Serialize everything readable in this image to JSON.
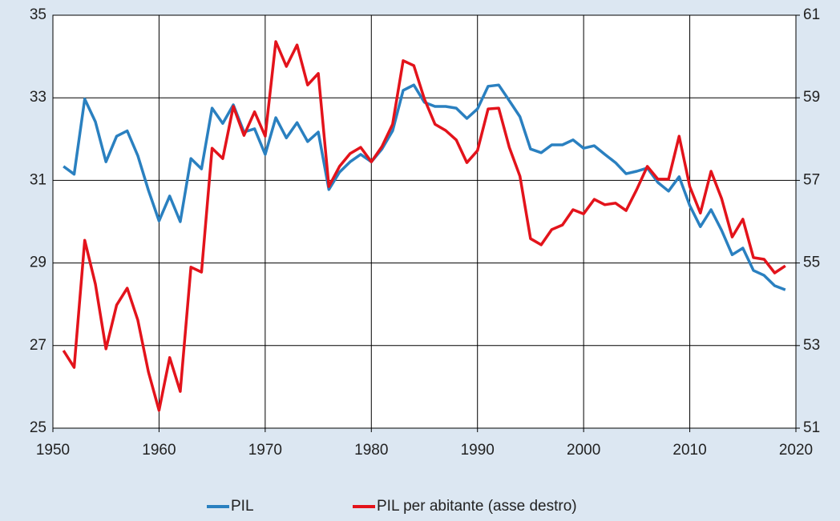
{
  "chart_data": {
    "type": "line",
    "x": [
      1951,
      1952,
      1953,
      1954,
      1955,
      1956,
      1957,
      1958,
      1959,
      1960,
      1961,
      1962,
      1963,
      1964,
      1965,
      1966,
      1967,
      1968,
      1969,
      1970,
      1971,
      1972,
      1973,
      1974,
      1975,
      1976,
      1977,
      1978,
      1979,
      1980,
      1981,
      1982,
      1983,
      1984,
      1985,
      1986,
      1987,
      1988,
      1989,
      1990,
      1991,
      1992,
      1993,
      1994,
      1995,
      1996,
      1997,
      1998,
      1999,
      2000,
      2001,
      2002,
      2003,
      2004,
      2005,
      2006,
      2007,
      2008,
      2009,
      2010,
      2011,
      2012,
      2013,
      2014,
      2015,
      2016,
      2017,
      2018,
      2019
    ],
    "series": [
      {
        "name": "PIL",
        "color": "#2a80c0",
        "axis": "y",
        "values": [
          31.34,
          31.15,
          32.97,
          32.42,
          31.45,
          32.07,
          32.2,
          31.6,
          30.76,
          30.02,
          30.62,
          30.0,
          31.53,
          31.28,
          32.75,
          32.38,
          32.83,
          32.17,
          32.25,
          31.63,
          32.52,
          32.03,
          32.4,
          31.94,
          32.17,
          30.78,
          31.2,
          31.45,
          31.63,
          31.45,
          31.76,
          32.2,
          33.18,
          33.31,
          32.89,
          32.79,
          32.79,
          32.75,
          32.5,
          32.73,
          33.28,
          33.31,
          32.93,
          32.54,
          31.76,
          31.67,
          31.86,
          31.86,
          31.98,
          31.78,
          31.84,
          31.63,
          31.43,
          31.16,
          31.22,
          31.3,
          30.95,
          30.74,
          31.09,
          30.39,
          29.88,
          30.29,
          29.79,
          29.2,
          29.36,
          28.82,
          28.7,
          28.45,
          28.35
        ]
      },
      {
        "name": "PIL per abitante (asse destro)",
        "color": "#e3131b",
        "axis": "y2",
        "values": [
          52.88,
          52.47,
          55.55,
          54.49,
          52.92,
          53.98,
          54.39,
          53.62,
          52.36,
          51.43,
          52.71,
          51.89,
          54.9,
          54.78,
          57.78,
          57.53,
          58.79,
          58.09,
          58.66,
          58.07,
          60.36,
          59.76,
          60.28,
          59.31,
          59.59,
          56.85,
          57.34,
          57.65,
          57.8,
          57.45,
          57.82,
          58.36,
          59.9,
          59.78,
          58.97,
          58.36,
          58.21,
          57.98,
          57.43,
          57.72,
          58.73,
          58.75,
          57.8,
          57.1,
          55.59,
          55.44,
          55.81,
          55.92,
          56.29,
          56.19,
          56.54,
          56.41,
          56.45,
          56.27,
          56.78,
          57.34,
          57.03,
          57.03,
          58.07,
          56.85,
          56.21,
          57.22,
          56.56,
          55.63,
          56.06,
          55.13,
          55.09,
          54.76,
          54.93
        ]
      }
    ],
    "xlim": [
      1950,
      2020
    ],
    "xticks": [
      1950,
      1960,
      1970,
      1980,
      1990,
      2000,
      2010,
      2020
    ],
    "ylim": [
      25,
      35
    ],
    "yticks": [
      25,
      27,
      29,
      31,
      33,
      35
    ],
    "y2lim": [
      51,
      61
    ],
    "y2ticks": [
      51,
      53,
      55,
      57,
      59,
      61
    ],
    "grid": true,
    "legend": "bottom"
  }
}
